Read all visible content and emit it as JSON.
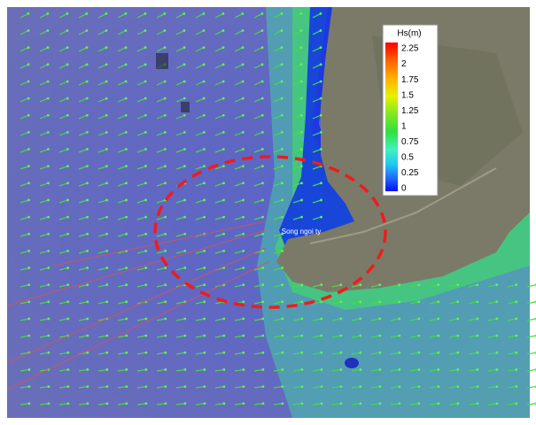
{
  "legend": {
    "title": "Hs(m)",
    "ticks": [
      2.25,
      2,
      1.75,
      1.5,
      1.25,
      1,
      0.75,
      0.5,
      0.25,
      0
    ]
  },
  "annotation": "Song ngoi ty"
}
